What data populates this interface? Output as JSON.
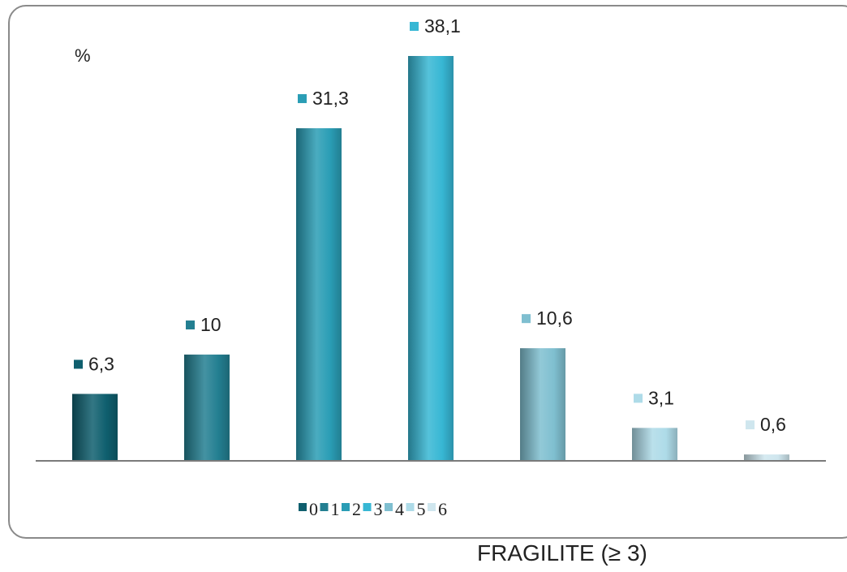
{
  "chart_data": {
    "type": "bar",
    "ylabel": "%",
    "categories": [
      "0",
      "1",
      "2",
      "3",
      "4",
      "5",
      "6"
    ],
    "values": [
      6.3,
      10,
      31.3,
      38.1,
      10.6,
      3.1,
      0.6
    ],
    "value_labels": [
      "6,3",
      "10",
      "31,3",
      "38,1",
      "10,6",
      "3,1",
      "0,6"
    ],
    "ylim": [
      0,
      38.1
    ],
    "grid": false,
    "legend_position": "bottom",
    "colors": [
      "#0f5f6e",
      "#237f91",
      "#2a9db5",
      "#37b7d4",
      "#7fbfd0",
      "#aedbe8",
      "#cfe6ee"
    ]
  },
  "caption": "FRAGILITE (≥ 3)"
}
